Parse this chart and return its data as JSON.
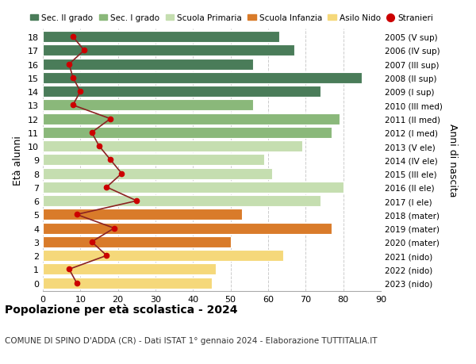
{
  "ages": [
    18,
    17,
    16,
    15,
    14,
    13,
    12,
    11,
    10,
    9,
    8,
    7,
    6,
    5,
    4,
    3,
    2,
    1,
    0
  ],
  "right_labels": [
    "2005 (V sup)",
    "2006 (IV sup)",
    "2007 (III sup)",
    "2008 (II sup)",
    "2009 (I sup)",
    "2010 (III med)",
    "2011 (II med)",
    "2012 (I med)",
    "2013 (V ele)",
    "2014 (IV ele)",
    "2015 (III ele)",
    "2016 (II ele)",
    "2017 (I ele)",
    "2018 (mater)",
    "2019 (mater)",
    "2020 (mater)",
    "2021 (nido)",
    "2022 (nido)",
    "2023 (nido)"
  ],
  "bar_values": [
    63,
    67,
    56,
    85,
    74,
    56,
    79,
    77,
    69,
    59,
    61,
    80,
    74,
    53,
    77,
    50,
    64,
    46,
    45
  ],
  "bar_colors": [
    "#4a7c59",
    "#4a7c59",
    "#4a7c59",
    "#4a7c59",
    "#4a7c59",
    "#8ab87a",
    "#8ab87a",
    "#8ab87a",
    "#c5deb0",
    "#c5deb0",
    "#c5deb0",
    "#c5deb0",
    "#c5deb0",
    "#d97b2a",
    "#d97b2a",
    "#d97b2a",
    "#f5d87a",
    "#f5d87a",
    "#f5d87a"
  ],
  "stranieri_values": [
    8,
    11,
    7,
    8,
    10,
    8,
    18,
    13,
    15,
    18,
    21,
    17,
    25,
    9,
    19,
    13,
    17,
    7,
    9
  ],
  "title_bold": "Popolazione per età scolastica - 2024",
  "subtitle": "COMUNE DI SPINO D'ADDA (CR) - Dati ISTAT 1° gennaio 2024 - Elaborazione TUTTITALIA.IT",
  "ylabel": "Età alunni",
  "right_ylabel": "Anni di nascita",
  "xlim": [
    0,
    90
  ],
  "xticks": [
    0,
    10,
    20,
    30,
    40,
    50,
    60,
    70,
    80,
    90
  ],
  "bg_color": "#ffffff",
  "grid_color": "#cccccc",
  "legend_items": [
    {
      "label": "Sec. II grado",
      "color": "#4a7c59"
    },
    {
      "label": "Sec. I grado",
      "color": "#8ab87a"
    },
    {
      "label": "Scuola Primaria",
      "color": "#c5deb0"
    },
    {
      "label": "Scuola Infanzia",
      "color": "#d97b2a"
    },
    {
      "label": "Asilo Nido",
      "color": "#f5d87a"
    },
    {
      "label": "Stranieri",
      "color": "#cc0000"
    }
  ],
  "stranieri_line_color": "#8b2222",
  "stranieri_dot_color": "#cc0000"
}
